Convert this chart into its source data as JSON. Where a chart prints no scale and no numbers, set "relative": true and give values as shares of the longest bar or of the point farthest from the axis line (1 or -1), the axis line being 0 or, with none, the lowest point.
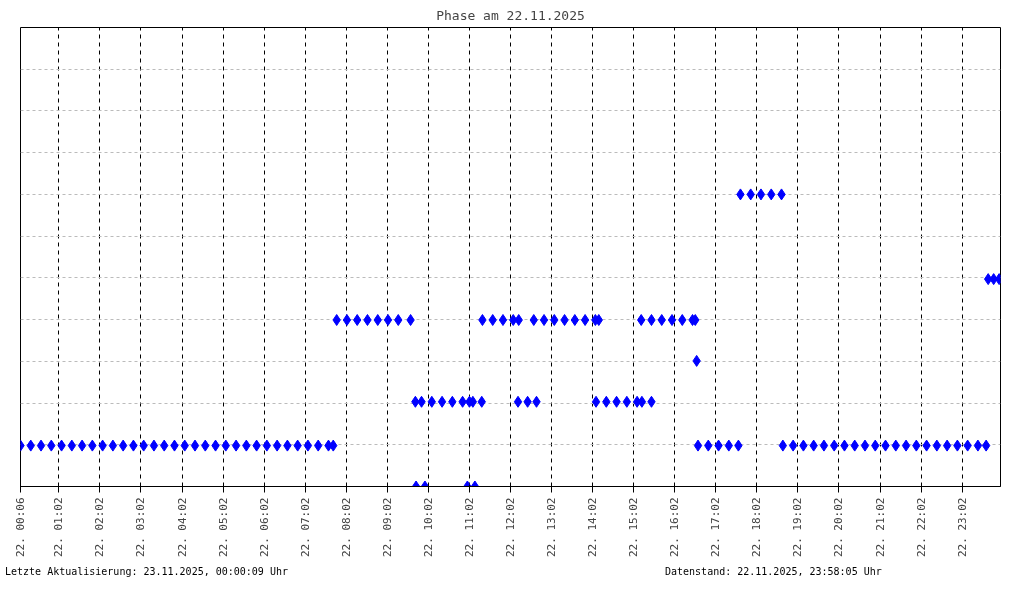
{
  "chart_data": {
    "type": "scatter",
    "title": "Phase am 22.11.2025",
    "annotations": [
      "Letzte Aktualisierung: 23.11.2025, 00:00:09 Uhr",
      "Datenstand: 22.11.2025, 23:58:05 Uhr"
    ],
    "series": [
      {
        "color": "#0000ff",
        "x": [
          "2025-11-22T00:06",
          "2025-11-22T00:21",
          "2025-11-22T00:36",
          "2025-11-22T00:51",
          "2025-11-22T01:06",
          "2025-11-22T01:21",
          "2025-11-22T01:36",
          "2025-11-22T01:51",
          "2025-11-22T02:06",
          "2025-11-22T02:21",
          "2025-11-22T02:36",
          "2025-11-22T02:51",
          "2025-11-22T03:06",
          "2025-11-22T03:21",
          "2025-11-22T03:36",
          "2025-11-22T03:51",
          "2025-11-22T04:06",
          "2025-11-22T04:21",
          "2025-11-22T04:36",
          "2025-11-22T04:51",
          "2025-11-22T05:06",
          "2025-11-22T05:21",
          "2025-11-22T05:36",
          "2025-11-22T05:51",
          "2025-11-22T06:06",
          "2025-11-22T06:21",
          "2025-11-22T06:36",
          "2025-11-22T06:51",
          "2025-11-22T07:06",
          "2025-11-22T07:21",
          "2025-11-22T07:36",
          "2025-11-22T07:43",
          "2025-11-22T07:48",
          "2025-11-22T08:03",
          "2025-11-22T08:18",
          "2025-11-22T08:33",
          "2025-11-22T08:48",
          "2025-11-22T09:03",
          "2025-11-22T09:18",
          "2025-11-22T09:36",
          "2025-11-22T09:43",
          "2025-11-22T09:52",
          "2025-11-22T10:07",
          "2025-11-22T10:22",
          "2025-11-22T10:37",
          "2025-11-22T10:52",
          "2025-11-22T11:02",
          "2025-11-22T11:07",
          "2025-11-22T11:20",
          "2025-11-22T09:44",
          "2025-11-22T09:57",
          "2025-11-22T10:59",
          "2025-11-22T11:10",
          "2025-11-22T11:21",
          "2025-11-22T11:36",
          "2025-11-22T11:51",
          "2025-11-22T12:06",
          "2025-11-22T12:14",
          "2025-11-22T12:13",
          "2025-11-22T12:27",
          "2025-11-22T12:40",
          "2025-11-22T12:36",
          "2025-11-22T12:51",
          "2025-11-22T13:06",
          "2025-11-22T13:21",
          "2025-11-22T13:36",
          "2025-11-22T13:51",
          "2025-11-22T14:06",
          "2025-11-22T14:11",
          "2025-11-22T14:07",
          "2025-11-22T14:22",
          "2025-11-22T14:37",
          "2025-11-22T14:52",
          "2025-11-22T15:07",
          "2025-11-22T15:14",
          "2025-11-22T15:28",
          "2025-11-22T15:13",
          "2025-11-22T15:28",
          "2025-11-22T15:43",
          "2025-11-22T15:58",
          "2025-11-22T16:13",
          "2025-11-22T16:28",
          "2025-11-22T16:32",
          "2025-11-22T16:34",
          "2025-11-22T16:36",
          "2025-11-22T16:51",
          "2025-11-22T17:06",
          "2025-11-22T17:21",
          "2025-11-22T17:35",
          "2025-11-22T17:38",
          "2025-11-22T17:53",
          "2025-11-22T18:08",
          "2025-11-22T18:23",
          "2025-11-22T18:38",
          "2025-11-22T18:40",
          "2025-11-22T18:55",
          "2025-11-22T19:10",
          "2025-11-22T19:25",
          "2025-11-22T19:40",
          "2025-11-22T19:55",
          "2025-11-22T20:10",
          "2025-11-22T20:25",
          "2025-11-22T20:40",
          "2025-11-22T20:55",
          "2025-11-22T21:10",
          "2025-11-22T21:25",
          "2025-11-22T21:40",
          "2025-11-22T21:55",
          "2025-11-22T22:10",
          "2025-11-22T22:25",
          "2025-11-22T22:40",
          "2025-11-22T22:55",
          "2025-11-22T23:10",
          "2025-11-22T23:25",
          "2025-11-22T23:37",
          "2025-11-22T23:40",
          "2025-11-22T23:48",
          "2025-11-22T23:56"
        ],
        "values": [
          0.14,
          0.14,
          0.14,
          0.14,
          0.14,
          0.14,
          0.14,
          0.14,
          0.14,
          0.14,
          0.14,
          0.14,
          0.14,
          0.14,
          0.14,
          0.14,
          0.14,
          0.14,
          0.14,
          0.14,
          0.14,
          0.14,
          0.14,
          0.14,
          0.14,
          0.14,
          0.14,
          0.14,
          0.14,
          0.14,
          0.14,
          0.14,
          0.57,
          0.57,
          0.57,
          0.57,
          0.57,
          0.57,
          0.57,
          0.57,
          0.29,
          0.29,
          0.29,
          0.29,
          0.29,
          0.29,
          0.29,
          0.29,
          0.29,
          0,
          0,
          0,
          0,
          0.57,
          0.57,
          0.57,
          0.57,
          0.57,
          0.29,
          0.29,
          0.29,
          0.57,
          0.57,
          0.57,
          0.57,
          0.57,
          0.57,
          0.57,
          0.57,
          0.29,
          0.29,
          0.29,
          0.29,
          0.29,
          0.29,
          0.29,
          0.57,
          0.57,
          0.57,
          0.57,
          0.57,
          0.57,
          0.57,
          0.43,
          0.14,
          0.14,
          0.14,
          0.14,
          0.14,
          1,
          1,
          1,
          1,
          1,
          0.14,
          0.14,
          0.14,
          0.14,
          0.14,
          0.14,
          0.14,
          0.14,
          0.14,
          0.14,
          0.14,
          0.14,
          0.14,
          0.14,
          0.14,
          0.14,
          0.14,
          0.14,
          0.14,
          0.14,
          0.14,
          0.71,
          0.71,
          0.71
        ]
      }
    ],
    "relative": true,
    "marker": "diamond",
    "grid": true,
    "xlim": [
      "2025-11-22T00:06",
      "2025-11-22T23:58"
    ],
    "xticks": [
      {
        "value": "2025-11-22T00:06",
        "label": "22. 00:06"
      },
      {
        "value": "2025-11-22T01:02",
        "label": "22. 01:02"
      },
      {
        "value": "2025-11-22T02:02",
        "label": "22. 02:02"
      },
      {
        "value": "2025-11-22T03:02",
        "label": "22. 03:02"
      },
      {
        "value": "2025-11-22T04:02",
        "label": "22. 04:02"
      },
      {
        "value": "2025-11-22T05:02",
        "label": "22. 05:02"
      },
      {
        "value": "2025-11-22T06:02",
        "label": "22. 06:02"
      },
      {
        "value": "2025-11-22T07:02",
        "label": "22. 07:02"
      },
      {
        "value": "2025-11-22T08:02",
        "label": "22. 08:02"
      },
      {
        "value": "2025-11-22T09:02",
        "label": "22. 09:02"
      },
      {
        "value": "2025-11-22T10:02",
        "label": "22. 10:02"
      },
      {
        "value": "2025-11-22T11:02",
        "label": "22. 11:02"
      },
      {
        "value": "2025-11-22T12:02",
        "label": "22. 12:02"
      },
      {
        "value": "2025-11-22T13:02",
        "label": "22. 13:02"
      },
      {
        "value": "2025-11-22T14:02",
        "label": "22. 14:02"
      },
      {
        "value": "2025-11-22T15:02",
        "label": "22. 15:02"
      },
      {
        "value": "2025-11-22T16:02",
        "label": "22. 16:02"
      },
      {
        "value": "2025-11-22T17:02",
        "label": "22. 17:02"
      },
      {
        "value": "2025-11-22T18:02",
        "label": "22. 18:02"
      },
      {
        "value": "2025-11-22T19:02",
        "label": "22. 19:02"
      },
      {
        "value": "2025-11-22T20:02",
        "label": "22. 20:02"
      },
      {
        "value": "2025-11-22T21:02",
        "label": "22. 21:02"
      },
      {
        "value": "2025-11-22T22:02",
        "label": "22. 22:02"
      },
      {
        "value": "2025-11-22T23:02",
        "label": "22. 23:02"
      }
    ]
  }
}
